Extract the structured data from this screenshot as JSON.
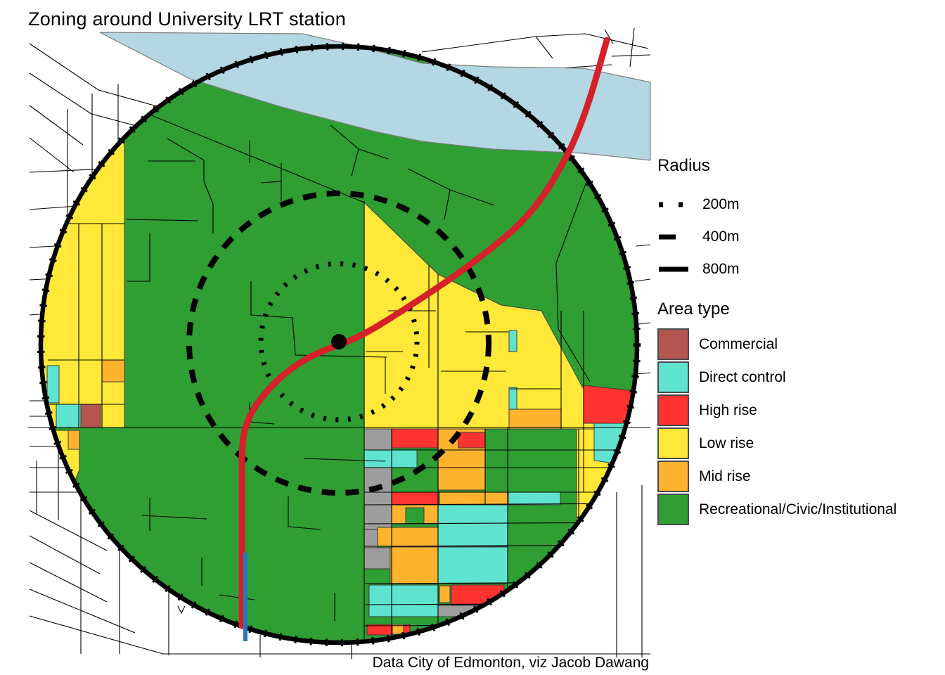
{
  "title": "Zoning around University LRT station",
  "caption": "Data City of Edmonton, viz Jacob Dawang",
  "radius_legend": {
    "title": "Radius",
    "items": [
      {
        "label": "200m",
        "style": "dotted"
      },
      {
        "label": "400m",
        "style": "dashed"
      },
      {
        "label": "800m",
        "style": "solid"
      }
    ]
  },
  "area_legend": {
    "title": "Area type",
    "items": [
      {
        "label": "Commercial",
        "color_key": "commercial"
      },
      {
        "label": "Direct control",
        "color_key": "direct_control"
      },
      {
        "label": "High rise",
        "color_key": "high_rise"
      },
      {
        "label": "Low rise",
        "color_key": "low_rise"
      },
      {
        "label": "Mid rise",
        "color_key": "mid_rise"
      },
      {
        "label": "Recreational/Civic/Institutional",
        "color_key": "recreational"
      }
    ]
  },
  "colors": {
    "commercial": "#B4564F",
    "direct_control": "#5FE3CF",
    "high_rise": "#FF3330",
    "low_rise": "#FFE838",
    "mid_rise": "#FDB32E",
    "recreational": "#2F9E33",
    "river": "#B4D7E4",
    "no_zone_gray": "#9D9D9D",
    "lrt_line": "#D6202A",
    "transit_blue": "#2779BE",
    "ring": "#000000",
    "street": "#000000",
    "swatch_border": "#4A4A4A"
  }
}
